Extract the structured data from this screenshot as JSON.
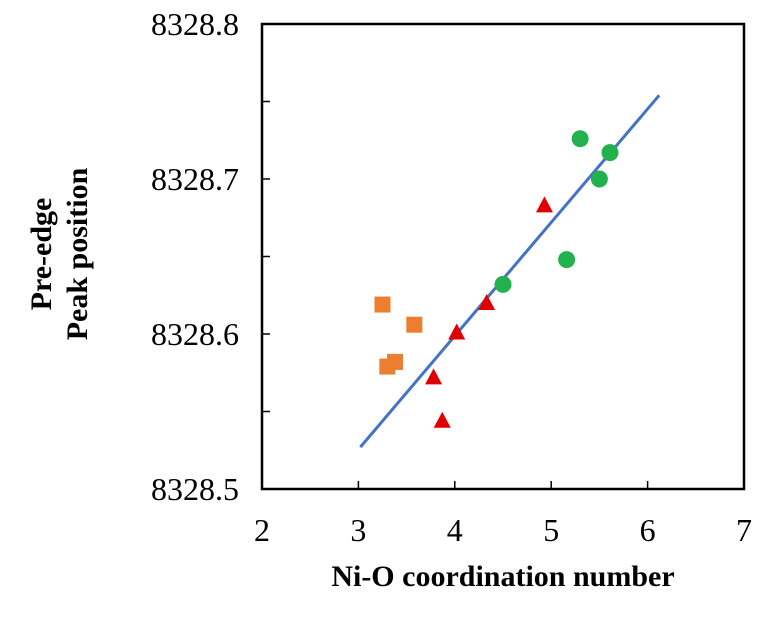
{
  "chart_data": {
    "type": "scatter",
    "title": "",
    "xlabel": "Ni-O coordination number",
    "ylabel_lines": [
      "Pre-edge",
      "Peak position"
    ],
    "xlim": [
      2,
      7
    ],
    "ylim": [
      8328.5,
      8328.8
    ],
    "x_ticks": [
      "2",
      "3",
      "4",
      "5",
      "6",
      "7"
    ],
    "y_ticks": [
      "8328.5",
      "8328.6",
      "8328.7",
      "8328.8"
    ],
    "y_minor_ticks": [
      8328.55,
      8328.65,
      8328.75
    ],
    "grid": false,
    "legend": "none",
    "series": [
      {
        "marker": "square",
        "color": "#ED7D31",
        "points": [
          {
            "x": 3.25,
            "y": 8328.619
          },
          {
            "x": 3.58,
            "y": 8328.606
          },
          {
            "x": 3.38,
            "y": 8328.582
          },
          {
            "x": 3.3,
            "y": 8328.579
          }
        ]
      },
      {
        "marker": "triangle",
        "color": "#E00000",
        "points": [
          {
            "x": 4.93,
            "y": 8328.683
          },
          {
            "x": 4.33,
            "y": 8328.62
          },
          {
            "x": 4.02,
            "y": 8328.601
          },
          {
            "x": 3.78,
            "y": 8328.572
          },
          {
            "x": 3.87,
            "y": 8328.544
          }
        ]
      },
      {
        "marker": "circle",
        "color": "#22B14C",
        "points": [
          {
            "x": 5.3,
            "y": 8328.726
          },
          {
            "x": 5.61,
            "y": 8328.717
          },
          {
            "x": 5.5,
            "y": 8328.7
          },
          {
            "x": 5.16,
            "y": 8328.648
          },
          {
            "x": 4.5,
            "y": 8328.632
          }
        ]
      }
    ],
    "trendline": {
      "color": "#4472C4",
      "x": [
        3.02,
        6.12
      ],
      "y": [
        8328.527,
        8328.754
      ]
    }
  }
}
